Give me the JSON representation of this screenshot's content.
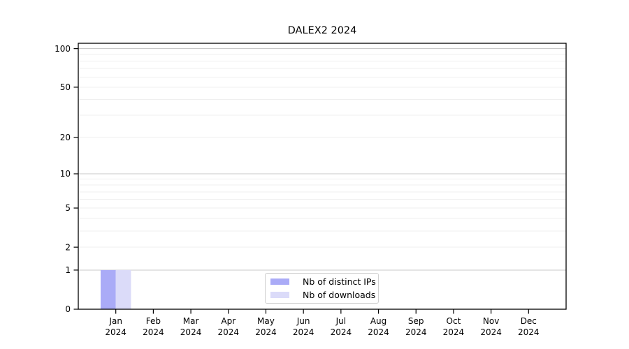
{
  "chart_data": {
    "type": "bar",
    "title": "DALEX2 2024",
    "categories": [
      "Jan",
      "Feb",
      "Mar",
      "Apr",
      "May",
      "Jun",
      "Jul",
      "Aug",
      "Sep",
      "Oct",
      "Nov",
      "Dec"
    ],
    "x_year_sublabel": "2024",
    "series": [
      {
        "name": "Nb of distinct IPs",
        "color": "#aaabf7",
        "values": [
          1,
          0,
          0,
          0,
          0,
          0,
          0,
          0,
          0,
          0,
          0,
          0
        ]
      },
      {
        "name": "Nb of downloads",
        "color": "#dbdbf9",
        "values": [
          1,
          0,
          0,
          0,
          0,
          0,
          0,
          0,
          0,
          0,
          0,
          0
        ]
      }
    ],
    "yscale": "log1p",
    "ylim": [
      0,
      110
    ],
    "y_ticks": [
      0,
      1,
      2,
      5,
      10,
      20,
      50,
      100
    ],
    "grid": {
      "major_lines": [
        1,
        10,
        100
      ],
      "minor_lines": [
        2,
        3,
        4,
        5,
        6,
        7,
        8,
        9,
        20,
        30,
        40,
        50,
        60,
        70,
        80,
        90
      ],
      "major_color": "#c8c8c8",
      "minor_color": "#efefef"
    },
    "legend": {
      "position": "bottom-center",
      "border_color": "#d0d0d0"
    },
    "axis_color": "#000000"
  }
}
